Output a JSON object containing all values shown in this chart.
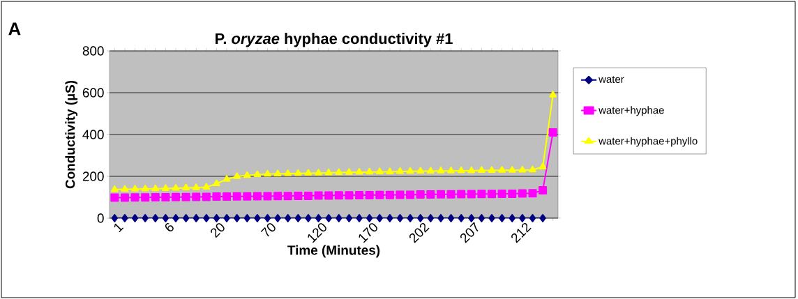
{
  "chart_data": {
    "type": "line",
    "title": "P. *oryzae* hyphae conductivity #1",
    "xlabel": "Time (Minutes)",
    "ylabel": "Conductivity (µS)",
    "annotations": [
      "A"
    ],
    "categories": [
      "1",
      null,
      null,
      null,
      null,
      "6",
      null,
      null,
      null,
      null,
      "20",
      null,
      null,
      null,
      null,
      "70",
      null,
      null,
      null,
      null,
      "120",
      null,
      null,
      null,
      null,
      "170",
      null,
      null,
      null,
      null,
      "202",
      null,
      null,
      null,
      null,
      "207",
      null,
      null,
      null,
      null,
      "212",
      null,
      null,
      null
    ],
    "series": [
      {
        "name": "water",
        "color": "#000080",
        "marker": "diamond",
        "values": [
          0,
          0,
          0,
          0,
          0,
          0,
          0,
          0,
          0,
          0,
          0,
          0,
          0,
          0,
          0,
          0,
          0,
          0,
          0,
          0,
          0,
          0,
          0,
          0,
          0,
          0,
          0,
          0,
          0,
          0,
          0,
          0,
          0,
          0,
          0,
          0,
          0,
          0,
          0,
          0,
          0,
          0,
          0,
          null
        ]
      },
      {
        "name": "water+hyphae",
        "color": "#ff00ff",
        "marker": "square",
        "values": [
          98,
          98,
          99,
          99,
          100,
          100,
          101,
          101,
          102,
          102,
          103,
          103,
          104,
          104,
          105,
          105,
          106,
          106,
          107,
          107,
          108,
          108,
          109,
          109,
          110,
          110,
          111,
          111,
          112,
          112,
          113,
          113,
          114,
          114,
          115,
          115,
          116,
          116,
          117,
          117,
          118,
          119,
          133,
          410
        ]
      },
      {
        "name": "water+hyphae+phyllo",
        "color": "#ffff00",
        "marker": "triangle",
        "values": [
          137,
          138,
          139,
          140,
          141,
          142,
          143,
          145,
          146,
          148,
          165,
          186,
          199,
          204,
          208,
          211,
          212,
          213,
          214,
          215,
          216,
          217,
          218,
          219,
          220,
          221,
          222,
          222,
          223,
          224,
          225,
          225,
          226,
          226,
          227,
          227,
          228,
          228,
          229,
          229,
          230,
          231,
          245,
          589
        ]
      }
    ],
    "ylim": [
      0,
      800
    ],
    "yticks": [
      0,
      200,
      400,
      600,
      800
    ],
    "grid": "y",
    "legend": "right",
    "line_style": "solid"
  }
}
